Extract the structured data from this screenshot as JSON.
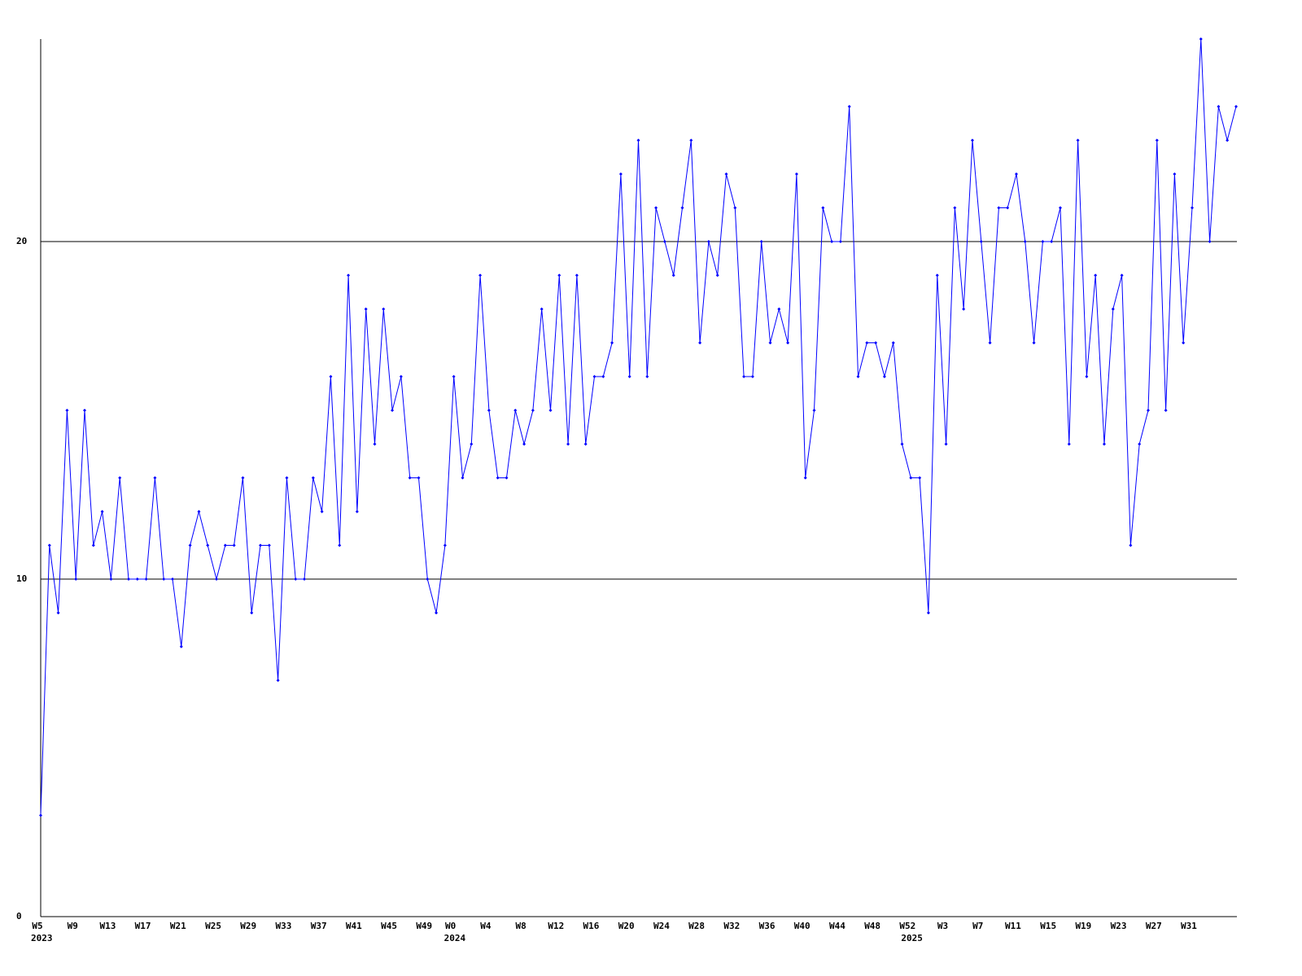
{
  "chart_data": {
    "type": "line",
    "categories": [
      "W5",
      null,
      null,
      null,
      "W9",
      null,
      null,
      null,
      "W13",
      null,
      null,
      null,
      "W17",
      null,
      null,
      null,
      "W21",
      null,
      null,
      null,
      "W25",
      null,
      null,
      null,
      "W29",
      null,
      null,
      null,
      "W33",
      null,
      null,
      null,
      "W37",
      null,
      null,
      null,
      "W41",
      null,
      null,
      null,
      "W45",
      null,
      null,
      null,
      "W49",
      null,
      null,
      "W0",
      null,
      null,
      null,
      "W4",
      null,
      null,
      null,
      "W8",
      null,
      null,
      null,
      "W12",
      null,
      null,
      null,
      "W16",
      null,
      null,
      null,
      "W20",
      null,
      null,
      null,
      "W24",
      null,
      null,
      null,
      "W28",
      null,
      null,
      null,
      "W32",
      null,
      null,
      null,
      "W36",
      null,
      null,
      null,
      "W40",
      null,
      null,
      null,
      "W44",
      null,
      null,
      null,
      "W48",
      null,
      null,
      null,
      "W52",
      null,
      null,
      null,
      "W3",
      null,
      null,
      null,
      "W7",
      null,
      null,
      null,
      "W11",
      null,
      null,
      null,
      "W15",
      null,
      null,
      null,
      "W19",
      null,
      null,
      null,
      "W23",
      null,
      null,
      null,
      "W27",
      null,
      null,
      null,
      "W31",
      null,
      null,
      null,
      null,
      null
    ],
    "year_labels": [
      "2023",
      null,
      null,
      null,
      null,
      null,
      null,
      null,
      null,
      null,
      null,
      null,
      null,
      null,
      null,
      null,
      null,
      null,
      null,
      null,
      null,
      null,
      null,
      null,
      null,
      null,
      null,
      null,
      null,
      null,
      null,
      null,
      null,
      null,
      null,
      null,
      null,
      null,
      null,
      null,
      null,
      null,
      null,
      null,
      null,
      null,
      null,
      "2024",
      null,
      null,
      null,
      null,
      null,
      null,
      null,
      null,
      null,
      null,
      null,
      null,
      null,
      null,
      null,
      null,
      null,
      null,
      null,
      null,
      null,
      null,
      null,
      null,
      null,
      null,
      null,
      null,
      null,
      null,
      null,
      null,
      null,
      null,
      null,
      null,
      null,
      null,
      null,
      null,
      null,
      null,
      null,
      null,
      null,
      null,
      null,
      null,
      null,
      null,
      null,
      "2025",
      null,
      null,
      null,
      null,
      null,
      null,
      null,
      null,
      null,
      null,
      null,
      null,
      null,
      null,
      null,
      null,
      null,
      null,
      null,
      null,
      null,
      null,
      null,
      null,
      null,
      null,
      null,
      null,
      null,
      null,
      null,
      null,
      null,
      null,
      null,
      null,
      null
    ],
    "series": [
      {
        "color": "#0000ff",
        "values": [
          3,
          11,
          9,
          15,
          10,
          15,
          11,
          12,
          10,
          13,
          10,
          10,
          10,
          13,
          10,
          10,
          8,
          11,
          12,
          11,
          10,
          11,
          11,
          13,
          9,
          11,
          11,
          7,
          13,
          10,
          10,
          13,
          12,
          16,
          11,
          19,
          12,
          18,
          14,
          18,
          15,
          16,
          13,
          13,
          10,
          9,
          11,
          16,
          13,
          14,
          19,
          15,
          13,
          13,
          15,
          14,
          15,
          18,
          15,
          19,
          14,
          19,
          14,
          16,
          16,
          17,
          22,
          16,
          23,
          16,
          21,
          20,
          19,
          21,
          23,
          17,
          20,
          19,
          22,
          21,
          16,
          16,
          20,
          17,
          18,
          17,
          22,
          13,
          15,
          21,
          20,
          20,
          24,
          16,
          17,
          17,
          16,
          17,
          14,
          13,
          13,
          9,
          19,
          14,
          21,
          18,
          23,
          20,
          17,
          21,
          21,
          22,
          20,
          17,
          20,
          20,
          21,
          14,
          23,
          16,
          19,
          14,
          18,
          19,
          11,
          14,
          15,
          23,
          15,
          22,
          17,
          21,
          26,
          20,
          24,
          23,
          24
        ]
      }
    ],
    "ylim": [
      0,
      26
    ],
    "yticks": [
      0,
      10,
      20
    ],
    "grid": true
  }
}
